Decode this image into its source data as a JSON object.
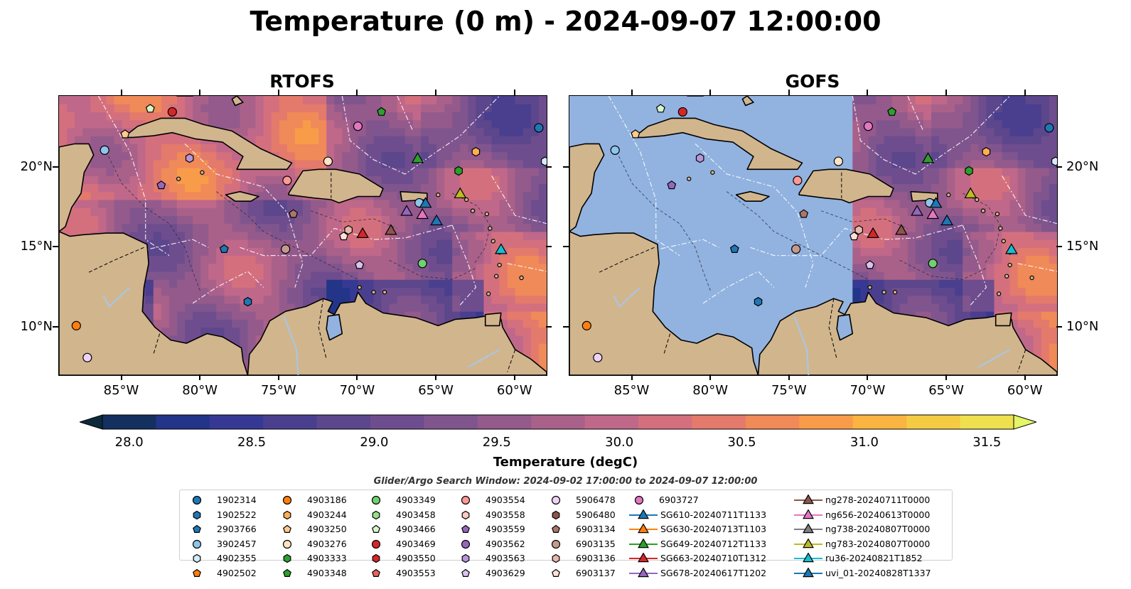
{
  "title": "Temperature (0 m) - 2024-09-07 12:00:00",
  "panels": [
    {
      "title": "RTOFS"
    },
    {
      "title": "GOFS"
    }
  ],
  "axes": {
    "x_ticks": [
      "85°W",
      "80°W",
      "75°W",
      "70°W",
      "65°W",
      "60°W"
    ],
    "y_ticks": [
      "20°N",
      "15°N",
      "10°N"
    ],
    "lon_range": [
      -89,
      -58
    ],
    "lat_range": [
      7,
      24.5
    ]
  },
  "colorbar": {
    "label": "Temperature (degC)",
    "ticks": [
      "28.0",
      "28.5",
      "29.0",
      "29.5",
      "30.0",
      "30.5",
      "31.0",
      "31.5"
    ],
    "range": [
      28.0,
      31.5
    ],
    "colors": [
      "#0d2a3d",
      "#14305f",
      "#233588",
      "#363993",
      "#4a3f8f",
      "#5c468c",
      "#6e4d8e",
      "#80558e",
      "#945a8c",
      "#a9618a",
      "#c0688a",
      "#d4707e",
      "#e47a6b",
      "#f08a58",
      "#f89c4a",
      "#fab441",
      "#f6cb44",
      "#eee04f",
      "#e4f566"
    ],
    "extend": "both"
  },
  "search_window": "Glider/Argo Search Window: 2024-09-02 17:00:00 to 2024-09-07 12:00:00",
  "legend": {
    "columns": [
      [
        {
          "label": "1902314",
          "marker": "circle",
          "color": "#1f77b4"
        },
        {
          "label": "1902522",
          "marker": "hexagon",
          "color": "#1f77b4"
        },
        {
          "label": "2903766",
          "marker": "pentagon",
          "color": "#1f77b4"
        },
        {
          "label": "3902457",
          "marker": "circle",
          "color": "#8ec5ea"
        },
        {
          "label": "4902355",
          "marker": "hexagon",
          "color": "#d6ebfa"
        },
        {
          "label": "4902502",
          "marker": "pentagon",
          "color": "#ff7f0e"
        }
      ],
      [
        {
          "label": "4903186",
          "marker": "circle",
          "color": "#ff7f0e"
        },
        {
          "label": "4903244",
          "marker": "hexagon",
          "color": "#ffae54"
        },
        {
          "label": "4903250",
          "marker": "pentagon",
          "color": "#ffca8a"
        },
        {
          "label": "4903276",
          "marker": "circle",
          "color": "#ffe4c4"
        },
        {
          "label": "4903333",
          "marker": "hexagon",
          "color": "#2ca02c"
        },
        {
          "label": "4903348",
          "marker": "pentagon",
          "color": "#2ca02c"
        }
      ],
      [
        {
          "label": "4903349",
          "marker": "circle",
          "color": "#6fd16f"
        },
        {
          "label": "4903458",
          "marker": "hexagon",
          "color": "#98df8a"
        },
        {
          "label": "4903466",
          "marker": "pentagon",
          "color": "#d7f5cc"
        },
        {
          "label": "4903469",
          "marker": "circle",
          "color": "#d62728"
        },
        {
          "label": "4903550",
          "marker": "hexagon",
          "color": "#d62728"
        },
        {
          "label": "4903553",
          "marker": "pentagon",
          "color": "#e8625f"
        }
      ],
      [
        {
          "label": "4903554",
          "marker": "circle",
          "color": "#ff9896"
        },
        {
          "label": "4903558",
          "marker": "hexagon",
          "color": "#ffc9c4"
        },
        {
          "label": "4903559",
          "marker": "pentagon",
          "color": "#9467bd"
        },
        {
          "label": "4903562",
          "marker": "circle",
          "color": "#9467bd"
        },
        {
          "label": "4903563",
          "marker": "hexagon",
          "color": "#b796d8"
        },
        {
          "label": "4903629",
          "marker": "pentagon",
          "color": "#d9c3ef"
        }
      ],
      [
        {
          "label": "5906478",
          "marker": "circle",
          "color": "#efd3f7"
        },
        {
          "label": "5906480",
          "marker": "hexagon",
          "color": "#8c564b"
        },
        {
          "label": "6903134",
          "marker": "pentagon",
          "color": "#a9776a"
        },
        {
          "label": "6903135",
          "marker": "circle",
          "color": "#c49a8f"
        },
        {
          "label": "6903136",
          "marker": "hexagon",
          "color": "#e6b8ac"
        },
        {
          "label": "6903137",
          "marker": "pentagon",
          "color": "#ffe0d6"
        }
      ],
      [
        {
          "label": "6903727",
          "marker": "circle",
          "color": "#e377c2"
        },
        {
          "label": "SG610-20240711T1133",
          "marker": "triangle",
          "color": "#1f77b4"
        },
        {
          "label": "SG630-20240713T1103",
          "marker": "triangle",
          "color": "#ff7f0e"
        },
        {
          "label": "SG649-20240712T1133",
          "marker": "triangle",
          "color": "#2ca02c"
        },
        {
          "label": "SG663-20240710T1312",
          "marker": "triangle",
          "color": "#d62728"
        },
        {
          "label": "SG678-20240617T1202",
          "marker": "triangle",
          "color": "#9467bd"
        }
      ],
      [
        {
          "label": "ng278-20240711T0000",
          "marker": "triangle",
          "color": "#8c564b"
        },
        {
          "label": "ng656-20240613T0000",
          "marker": "triangle",
          "color": "#e377c2"
        },
        {
          "label": "ng738-20240807T0000",
          "marker": "triangle",
          "color": "#7f7f7f"
        },
        {
          "label": "ng783-20240807T0000",
          "marker": "triangle",
          "color": "#bcbd22"
        },
        {
          "label": "ru36-20240821T1852",
          "marker": "triangle",
          "color": "#17becf"
        },
        {
          "label": "uvi_01-20240828T1337",
          "marker": "triangle",
          "color": "#1f77b4"
        }
      ]
    ]
  },
  "colors": {
    "land": "#d1b58d",
    "ocean_masked": "#92b3e0",
    "sea_base": "#6a4a8e"
  },
  "platform_positions": [
    {
      "id": "1902314",
      "lon": -58.5,
      "lat": 22.5
    },
    {
      "id": "4903186",
      "lon": -87.9,
      "lat": 10.1
    },
    {
      "id": "5906478",
      "lon": -87.2,
      "lat": 8.1
    },
    {
      "id": "3902457",
      "lon": -86.1,
      "lat": 21.1
    },
    {
      "id": "4903250",
      "lon": -84.8,
      "lat": 22.1
    },
    {
      "id": "4903466",
      "lon": -83.2,
      "lat": 23.7
    },
    {
      "id": "4903469",
      "lon": -81.8,
      "lat": 23.5
    },
    {
      "id": "4903563",
      "lon": -80.7,
      "lat": 20.6
    },
    {
      "id": "4903559",
      "lon": -82.5,
      "lat": 18.9
    },
    {
      "id": "2903766",
      "lon": -78.5,
      "lat": 14.9
    },
    {
      "id": "1902522",
      "lon": -77.0,
      "lat": 11.6
    },
    {
      "id": "4903554",
      "lon": -74.5,
      "lat": 19.2
    },
    {
      "id": "6903134",
      "lon": -74.1,
      "lat": 17.1
    },
    {
      "id": "6903135",
      "lon": -74.6,
      "lat": 14.9
    },
    {
      "id": "4903276",
      "lon": -71.9,
      "lat": 20.4
    },
    {
      "id": "6903727",
      "lon": -70.0,
      "lat": 22.6
    },
    {
      "id": "4903348",
      "lon": -68.5,
      "lat": 23.5
    },
    {
      "id": "6903136",
      "lon": -70.6,
      "lat": 16.1
    },
    {
      "id": "6903137",
      "lon": -70.9,
      "lat": 15.7
    },
    {
      "id": "4903629",
      "lon": -69.9,
      "lat": 13.9
    },
    {
      "id": "3902457b",
      "lon": -66.1,
      "lat": 17.8
    },
    {
      "id": "4903349",
      "lon": -65.9,
      "lat": 14.0
    },
    {
      "id": "4903333",
      "lon": -63.6,
      "lat": 19.8
    },
    {
      "id": "4903244",
      "lon": -62.5,
      "lat": 21.0
    },
    {
      "id": "4902355",
      "lon": -58.1,
      "lat": 20.4
    }
  ],
  "glider_positions": [
    {
      "id": "SG663-20240710T1312",
      "lon": -69.7,
      "lat": 15.9
    },
    {
      "id": "ng278-20240711T0000",
      "lon": -67.9,
      "lat": 16.1
    },
    {
      "id": "SG649-20240712T1133",
      "lon": -66.2,
      "lat": 20.6
    },
    {
      "id": "SG678-20240617T1202",
      "lon": -66.9,
      "lat": 17.3
    },
    {
      "id": "ng656-20240613T0000",
      "lon": -65.9,
      "lat": 17.1
    },
    {
      "id": "uvi_01-20240828T1337",
      "lon": -65.7,
      "lat": 17.8
    },
    {
      "id": "SG610-20240711T1133",
      "lon": -65.0,
      "lat": 16.7
    },
    {
      "id": "ng783-20240807T0000",
      "lon": -63.5,
      "lat": 18.4
    },
    {
      "id": "ru36-20240821T1852",
      "lon": -60.9,
      "lat": 14.9
    }
  ]
}
